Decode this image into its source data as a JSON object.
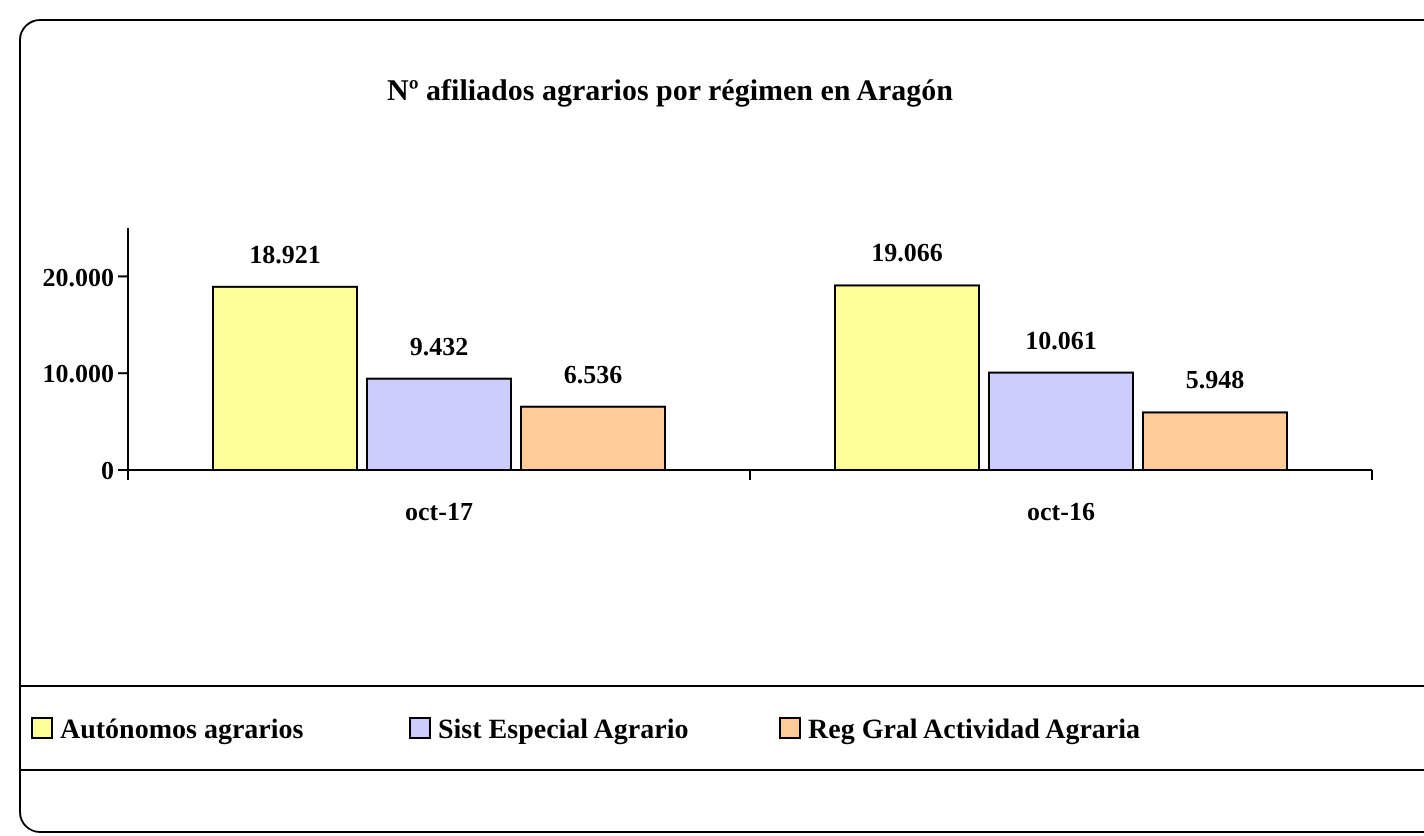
{
  "chart_data": {
    "type": "bar",
    "title": "Nº afiliados agrarios por régimen en Aragón",
    "categories": [
      "oct-17",
      "oct-16"
    ],
    "series": [
      {
        "name": "Autónomos agrarios",
        "color": "#ffff99",
        "values": [
          18921,
          19066
        ],
        "value_labels": [
          "18.921",
          "19.066"
        ]
      },
      {
        "name": "Sist Especial Agrario",
        "color": "#ccccff",
        "values": [
          9432,
          10061
        ],
        "value_labels": [
          "9.432",
          "10.061"
        ]
      },
      {
        "name": "Reg Gral Actividad Agraria",
        "color": "#ffcc99",
        "values": [
          6536,
          5948
        ],
        "value_labels": [
          "6.536",
          "5.948"
        ]
      }
    ],
    "ylim": [
      0,
      25000
    ],
    "yticks": [
      {
        "value": 0,
        "label": "0"
      },
      {
        "value": 10000,
        "label": "10.000"
      },
      {
        "value": 20000,
        "label": "20.000"
      }
    ],
    "legend": "bottom",
    "grid": false
  }
}
